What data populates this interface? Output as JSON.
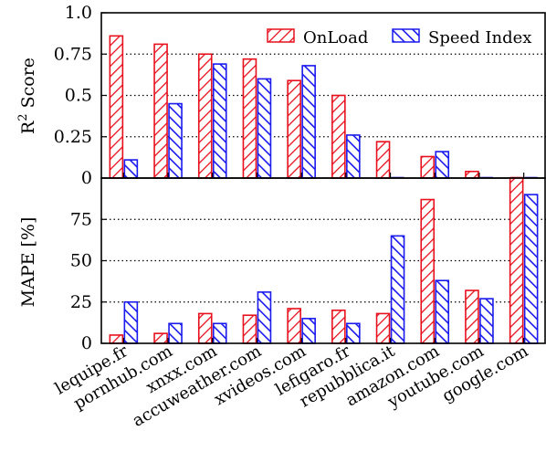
{
  "colors": {
    "onload": "#e8101c",
    "speed_index": "#1a1aee"
  },
  "chart_data": [
    {
      "type": "bar",
      "ylabel": "R2 Score",
      "ylabel_main": "R",
      "ylabel_sup": "2",
      "ylabel_rest": " Score",
      "ylim": [
        0,
        1.0
      ],
      "yticks": [
        "0",
        "0.25",
        "0.5",
        "0.75",
        "1.0"
      ],
      "ytick_values": [
        0,
        0.25,
        0.5,
        0.75,
        1.0
      ],
      "grid": "dotted-horizontal",
      "legend_position": "top-right",
      "categories": [
        "lequipe.fr",
        "pornhub.com",
        "xnxx.com",
        "accuweather.com",
        "xvideos.com",
        "lefigaro.fr",
        "repubblica.it",
        "amazon.com",
        "youtube.com",
        "google.com"
      ],
      "series": [
        {
          "name": "OnLoad",
          "values": [
            0.86,
            0.81,
            0.75,
            0.72,
            0.59,
            0.5,
            0.22,
            0.13,
            0.04,
            0.0
          ]
        },
        {
          "name": "Speed Index",
          "values": [
            0.11,
            0.45,
            0.69,
            0.6,
            0.68,
            0.26,
            0.0,
            0.16,
            0.0,
            0.0
          ]
        }
      ]
    },
    {
      "type": "bar",
      "ylabel": "MAPE [%]",
      "ylim": [
        0,
        100
      ],
      "yticks": [
        "0",
        "25",
        "50",
        "75"
      ],
      "ytick_values": [
        0,
        25,
        50,
        75
      ],
      "grid": "dotted-horizontal",
      "categories": [
        "lequipe.fr",
        "pornhub.com",
        "xnxx.com",
        "accuweather.com",
        "xvideos.com",
        "lefigaro.fr",
        "repubblica.it",
        "amazon.com",
        "youtube.com",
        "google.com"
      ],
      "series": [
        {
          "name": "OnLoad",
          "values": [
            5,
            6,
            18,
            17,
            21,
            20,
            18,
            87,
            32,
            100
          ]
        },
        {
          "name": "Speed Index",
          "values": [
            25,
            12,
            12,
            31,
            15,
            12,
            65,
            38,
            27,
            90
          ]
        }
      ]
    }
  ]
}
